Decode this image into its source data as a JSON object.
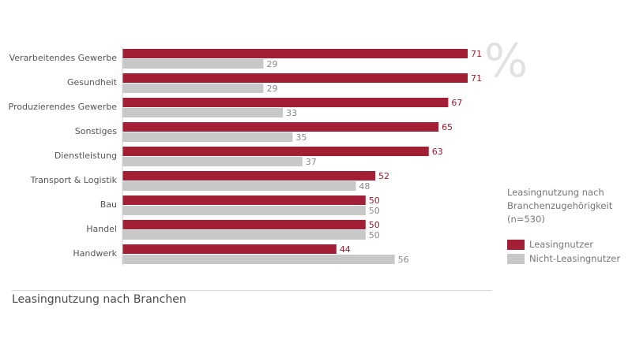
{
  "chart_data": {
    "type": "bar",
    "orientation": "horizontal",
    "categories": [
      "Verarbeitendes Gewerbe",
      "Gesundheit",
      "Produzierendes Gewerbe",
      "Sonstiges",
      "Dienstleistung",
      "Transport & Logistik",
      "Bau",
      "Handel",
      "Handwerk"
    ],
    "series": [
      {
        "name": "Leasingnutzer",
        "color": "#a31f36",
        "values": [
          71,
          71,
          67,
          65,
          63,
          52,
          50,
          50,
          44
        ]
      },
      {
        "name": "Nicht-Leasingnutzer",
        "color": "#c8c8c8",
        "values": [
          29,
          29,
          33,
          35,
          37,
          48,
          50,
          50,
          56
        ]
      }
    ],
    "unit_mark": "%",
    "legend_title": "Leasingnutzung nach Branchenzugehörigkeit (n=530)",
    "legend_position": "right",
    "grid": false,
    "xlim": [
      0,
      71
    ]
  },
  "caption": "Leasingnutzung nach Branchen",
  "legend": {
    "title_line1": "Leasingnutzung nach",
    "title_line2": "Branchenzugehörigkeit",
    "title_line3": "(n=530)",
    "item1": "Leasingnutzer",
    "item2": "Nicht-Leasingnutzer"
  }
}
